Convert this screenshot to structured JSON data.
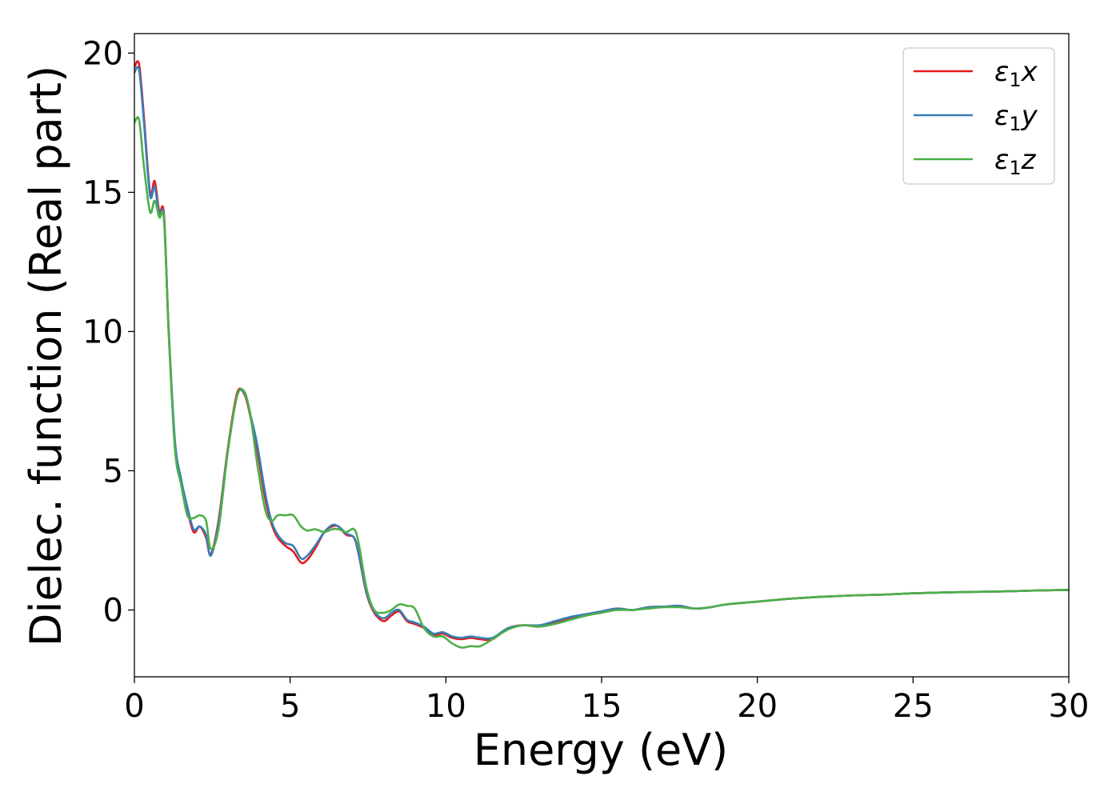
{
  "chart_data": {
    "type": "line",
    "xlabel": "Energy (eV)",
    "ylabel": "Dielec. function (Real part)",
    "xlim": [
      0,
      30
    ],
    "ylim": [
      -2.4,
      20.7
    ],
    "xticks": [
      "0",
      "5",
      "10",
      "15",
      "20",
      "25",
      "30"
    ],
    "yticks": [
      "0",
      "5",
      "10",
      "15",
      "20"
    ],
    "grid": false,
    "legend_position": "upper right",
    "series": [
      {
        "name": "ε1x",
        "label_main": "ε",
        "label_sub": "1",
        "label_tail": "x",
        "color": "#e41a1c",
        "x": [
          0,
          0.15,
          0.3,
          0.5,
          0.65,
          0.8,
          0.95,
          1.1,
          1.3,
          1.5,
          1.7,
          1.9,
          2.1,
          2.3,
          2.45,
          2.7,
          3.0,
          3.3,
          3.55,
          3.75,
          3.95,
          4.2,
          4.4,
          4.6,
          4.85,
          5.1,
          5.35,
          5.55,
          5.8,
          6.1,
          6.35,
          6.55,
          6.8,
          7.05,
          7.2,
          7.45,
          7.7,
          8.0,
          8.25,
          8.5,
          8.75,
          9.0,
          9.3,
          9.6,
          9.9,
          10.2,
          10.5,
          10.8,
          11.1,
          11.5,
          12.0,
          12.5,
          13.0,
          13.5,
          14.0,
          14.5,
          15.0,
          15.5,
          16.0,
          16.5,
          17.0,
          17.5,
          18.0,
          18.5,
          19.0,
          20.0,
          21.0,
          22.0,
          23.0,
          24.0,
          25.0,
          26.0,
          27.0,
          28.0,
          29.0,
          30.0
        ],
        "values": [
          19.5,
          19.6,
          17.8,
          15.0,
          15.4,
          14.3,
          14.2,
          10.0,
          6.0,
          4.6,
          3.6,
          2.8,
          3.0,
          2.6,
          2.0,
          3.2,
          5.8,
          7.8,
          7.7,
          6.8,
          5.7,
          4.0,
          3.1,
          2.6,
          2.3,
          2.1,
          1.7,
          1.8,
          2.2,
          2.8,
          3.0,
          3.0,
          2.7,
          2.6,
          2.0,
          0.6,
          -0.1,
          -0.4,
          -0.2,
          -0.05,
          -0.4,
          -0.5,
          -0.65,
          -0.9,
          -0.85,
          -1.0,
          -1.05,
          -1.0,
          -1.05,
          -1.05,
          -0.65,
          -0.55,
          -0.6,
          -0.45,
          -0.3,
          -0.2,
          -0.05,
          0.05,
          0.0,
          0.1,
          0.12,
          0.15,
          0.05,
          0.1,
          0.2,
          0.3,
          0.4,
          0.47,
          0.52,
          0.55,
          0.6,
          0.63,
          0.65,
          0.67,
          0.7,
          0.72
        ]
      },
      {
        "name": "ε1y",
        "label_main": "ε",
        "label_sub": "1",
        "label_tail": "y",
        "color": "#377eb8",
        "x": [
          0,
          0.15,
          0.3,
          0.5,
          0.65,
          0.8,
          0.95,
          1.1,
          1.3,
          1.5,
          1.7,
          1.9,
          2.1,
          2.3,
          2.45,
          2.7,
          3.0,
          3.3,
          3.55,
          3.75,
          3.95,
          4.2,
          4.4,
          4.6,
          4.85,
          5.1,
          5.35,
          5.55,
          5.8,
          6.1,
          6.35,
          6.55,
          6.8,
          7.05,
          7.2,
          7.45,
          7.7,
          8.0,
          8.25,
          8.5,
          8.75,
          9.0,
          9.3,
          9.6,
          9.9,
          10.2,
          10.5,
          10.8,
          11.1,
          11.5,
          12.0,
          12.5,
          13.0,
          13.5,
          14.0,
          14.5,
          15.0,
          15.5,
          16.0,
          16.5,
          17.0,
          17.5,
          18.0,
          18.5,
          19.0,
          20.0,
          21.0,
          22.0,
          23.0,
          24.0,
          25.0,
          26.0,
          27.0,
          28.0,
          29.0,
          30.0
        ],
        "values": [
          19.3,
          19.4,
          17.6,
          14.9,
          15.2,
          14.2,
          14.1,
          10.1,
          6.1,
          4.7,
          3.7,
          2.9,
          3.0,
          2.7,
          1.95,
          3.1,
          5.7,
          7.7,
          7.75,
          6.9,
          5.9,
          4.2,
          3.2,
          2.7,
          2.4,
          2.3,
          1.85,
          1.95,
          2.3,
          2.8,
          3.05,
          3.0,
          2.75,
          2.6,
          2.05,
          0.65,
          -0.05,
          -0.3,
          -0.1,
          0.0,
          -0.35,
          -0.45,
          -0.6,
          -0.85,
          -0.8,
          -0.95,
          -1.0,
          -0.95,
          -1.0,
          -1.0,
          -0.65,
          -0.55,
          -0.55,
          -0.4,
          -0.25,
          -0.15,
          -0.05,
          0.05,
          0.0,
          0.1,
          0.12,
          0.15,
          0.05,
          0.1,
          0.2,
          0.3,
          0.4,
          0.47,
          0.52,
          0.55,
          0.6,
          0.63,
          0.65,
          0.67,
          0.7,
          0.72
        ]
      },
      {
        "name": "ε1z",
        "label_main": "ε",
        "label_sub": "1",
        "label_tail": "z",
        "color": "#4daf4a",
        "x": [
          0,
          0.15,
          0.3,
          0.5,
          0.65,
          0.8,
          0.95,
          1.1,
          1.3,
          1.5,
          1.7,
          1.9,
          2.1,
          2.3,
          2.45,
          2.7,
          3.0,
          3.3,
          3.55,
          3.75,
          3.95,
          4.2,
          4.4,
          4.6,
          4.85,
          5.1,
          5.35,
          5.55,
          5.8,
          6.1,
          6.35,
          6.55,
          6.8,
          7.05,
          7.2,
          7.45,
          7.7,
          8.0,
          8.25,
          8.5,
          8.75,
          9.0,
          9.3,
          9.6,
          9.9,
          10.2,
          10.5,
          10.8,
          11.1,
          11.5,
          12.0,
          12.5,
          13.0,
          13.5,
          14.0,
          14.5,
          15.0,
          15.5,
          16.0,
          16.5,
          17.0,
          17.5,
          18.0,
          18.5,
          19.0,
          20.0,
          21.0,
          22.0,
          23.0,
          24.0,
          25.0,
          26.0,
          27.0,
          28.0,
          29.0,
          30.0
        ],
        "values": [
          17.5,
          17.6,
          16.0,
          14.3,
          14.7,
          14.1,
          14.0,
          10.0,
          5.8,
          4.5,
          3.4,
          3.3,
          3.4,
          3.2,
          2.2,
          2.9,
          5.7,
          7.7,
          7.8,
          6.8,
          5.2,
          3.6,
          3.2,
          3.4,
          3.4,
          3.4,
          3.0,
          2.85,
          2.9,
          2.8,
          2.9,
          2.9,
          2.8,
          2.9,
          2.4,
          0.8,
          0.0,
          -0.1,
          0.0,
          0.2,
          0.15,
          0.05,
          -0.65,
          -0.95,
          -0.95,
          -1.2,
          -1.35,
          -1.3,
          -1.3,
          -1.05,
          -0.7,
          -0.55,
          -0.6,
          -0.5,
          -0.35,
          -0.2,
          -0.1,
          0.0,
          0.0,
          0.05,
          0.1,
          0.1,
          0.05,
          0.1,
          0.2,
          0.3,
          0.4,
          0.47,
          0.52,
          0.55,
          0.6,
          0.63,
          0.65,
          0.67,
          0.7,
          0.72
        ]
      }
    ]
  }
}
